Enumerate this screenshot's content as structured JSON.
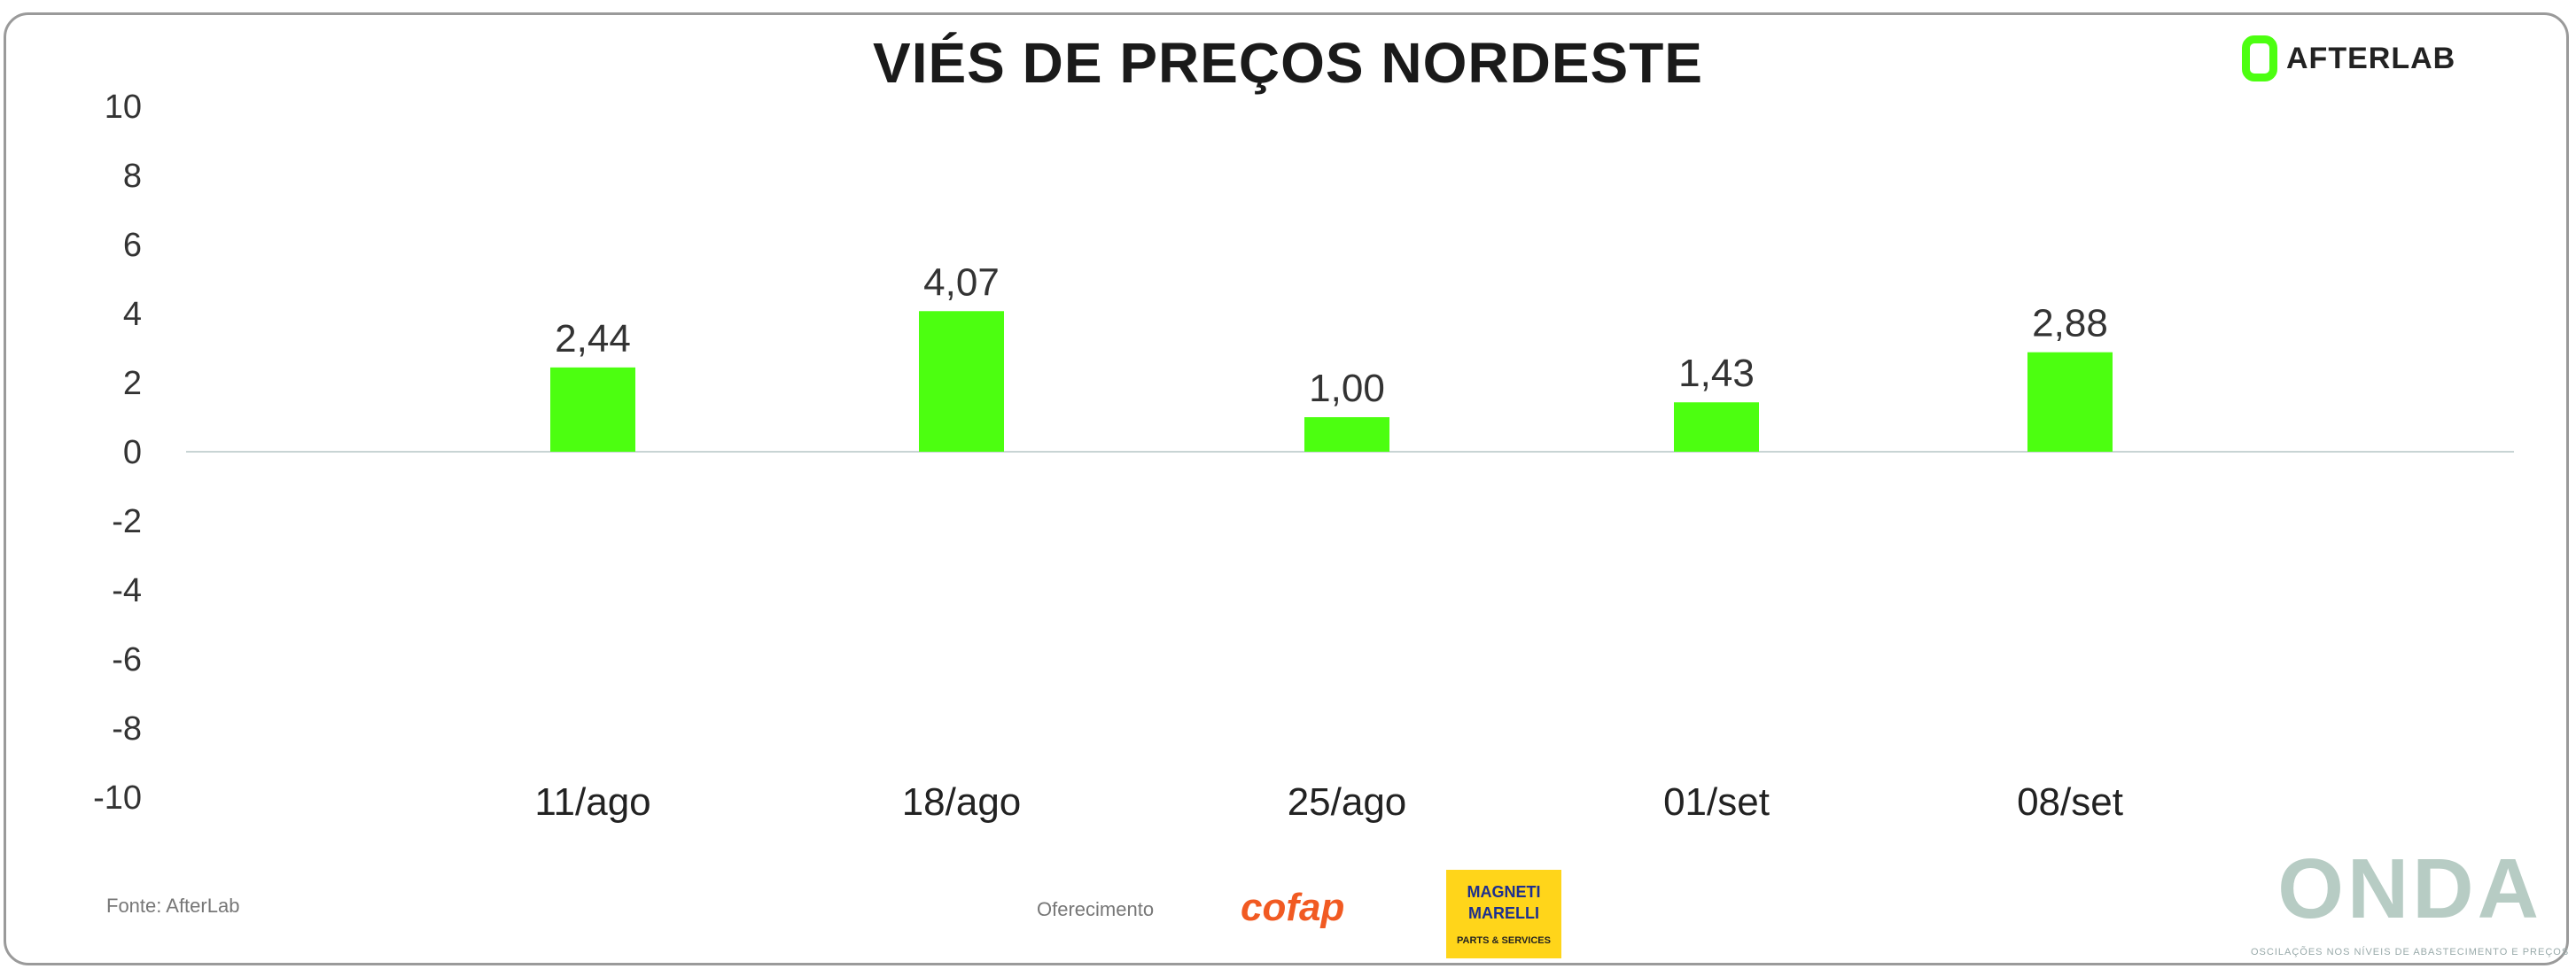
{
  "chart_data": {
    "type": "bar",
    "title": "VIÉS DE PREÇOS NORDESTE",
    "categories": [
      "11/ago",
      "18/ago",
      "25/ago",
      "01/set",
      "08/set"
    ],
    "values": [
      2.44,
      4.07,
      1.0,
      1.43,
      2.88
    ],
    "data_labels": [
      "2,44",
      "4,07",
      "1,00",
      "1,43",
      "2,88"
    ],
    "ylim": [
      -10,
      10
    ],
    "yticks": [
      "10",
      "8",
      "6",
      "4",
      "2",
      "0",
      "-2",
      "-4",
      "-6",
      "-8",
      "-10"
    ],
    "xlabel": "",
    "ylabel": "",
    "grid": false,
    "bar_color": "#4cff10",
    "baseline_color": "#c8d4d4"
  },
  "branding": {
    "logo": "AFTERLAB",
    "source": "Fonte: AfterLab",
    "sponsor_label": "Oferecimento",
    "sponsor1": "cofap",
    "sponsor2": "MAGNETI MARELLI",
    "sponsor2_sub": "PARTS & SERVICES",
    "onda": "ONDA",
    "onda_sub": "OSCILAÇÕES NOS NÍVEIS DE ABASTECIMENTO E PREÇOS"
  }
}
